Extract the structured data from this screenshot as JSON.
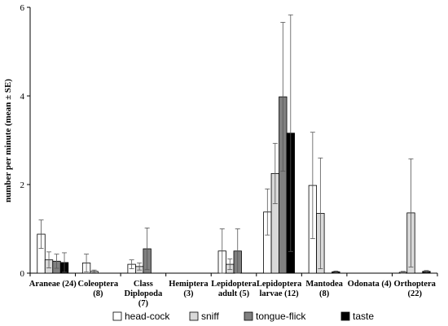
{
  "chart_data": {
    "type": "bar",
    "ylabel": "number per minute (mean ± SE)",
    "ylim": [
      0,
      6
    ],
    "yticks": [
      "0",
      "2",
      "4",
      "6"
    ],
    "grid": false,
    "legend_position": "bottom",
    "categories": [
      [
        "Araneae (24)"
      ],
      [
        "Coleoptera",
        "(8)"
      ],
      [
        "Class",
        "Diplopoda",
        "(7)"
      ],
      [
        "Hemiptera",
        "(3)"
      ],
      [
        "Lepidoptera",
        "adult (5)"
      ],
      [
        "Lepidoptera",
        "larvae (12)"
      ],
      [
        "Mantodea",
        "(8)"
      ],
      [
        "Odonata (4)"
      ],
      [
        "Orthoptera",
        "(22)"
      ]
    ],
    "series": [
      {
        "name": "head-cock",
        "color": "#ffffff",
        "values": [
          0.88,
          0.23,
          0.2,
          0,
          0.5,
          1.38,
          1.98,
          0,
          0.02
        ],
        "errors": [
          0.32,
          0.2,
          0.1,
          0,
          0.5,
          0.52,
          1.2,
          0,
          0.02
        ]
      },
      {
        "name": "sniff",
        "color": "#d9d9d9",
        "values": [
          0.3,
          0.04,
          0.15,
          0,
          0.2,
          2.25,
          1.35,
          0,
          1.36
        ],
        "errors": [
          0.18,
          0.03,
          0.08,
          0,
          0.12,
          0.68,
          1.25,
          0,
          1.22
        ]
      },
      {
        "name": "tongue-flick",
        "color": "#808080",
        "values": [
          0.27,
          0,
          0.55,
          0,
          0.5,
          3.98,
          0,
          0,
          0
        ],
        "errors": [
          0.16,
          0,
          0.47,
          0,
          0.5,
          1.68,
          0,
          0,
          0
        ]
      },
      {
        "name": "taste",
        "color": "#000000",
        "values": [
          0.24,
          0,
          0,
          0,
          0,
          3.16,
          0.03,
          0,
          0.04
        ],
        "errors": [
          0.22,
          0,
          0,
          0,
          0,
          2.67,
          0.02,
          0,
          0.02
        ]
      }
    ]
  }
}
